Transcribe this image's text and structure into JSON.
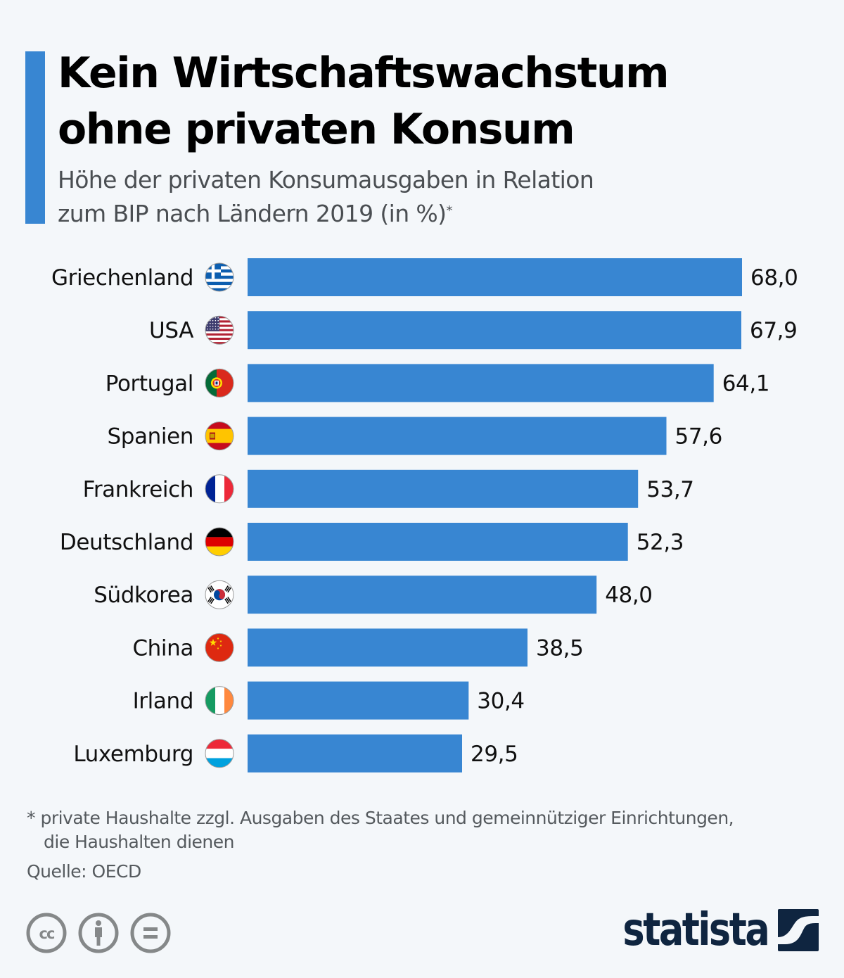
{
  "header": {
    "title_line1": "Kein Wirtschaftswachstum",
    "title_line2": "ohne privaten Konsum",
    "subtitle_line1": "Höhe der privaten Konsumausgaben in Relation",
    "subtitle_line2": "zum BIP nach Ländern 2019 (in %)",
    "subtitle_marker": "*"
  },
  "chart_data": {
    "type": "bar",
    "orientation": "horizontal",
    "title": "Kein Wirtschaftswachstum ohne privaten Konsum",
    "subtitle": "Höhe der privaten Konsumausgaben in Relation zum BIP nach Ländern 2019 (in %)*",
    "xlabel": "",
    "ylabel": "",
    "xlim": [
      0,
      68
    ],
    "grid": false,
    "legend": "none",
    "bar_color": "#3886d2",
    "categories": [
      "Griechenland",
      "USA",
      "Portugal",
      "Spanien",
      "Frankreich",
      "Deutschland",
      "Südkorea",
      "China",
      "Irland",
      "Luxemburg"
    ],
    "flags": [
      "greece-flag",
      "usa-flag",
      "portugal-flag",
      "spain-flag",
      "france-flag",
      "germany-flag",
      "south-korea-flag",
      "china-flag",
      "ireland-flag",
      "luxembourg-flag"
    ],
    "values": [
      68.0,
      67.9,
      64.1,
      57.6,
      53.7,
      52.3,
      48.0,
      38.5,
      30.4,
      29.5
    ],
    "value_labels": [
      "68,0",
      "67,9",
      "64,1",
      "57,6",
      "53,7",
      "52,3",
      "48,0",
      "38,5",
      "30,4",
      "29,5"
    ]
  },
  "footer": {
    "footnote_line1": "* private Haushalte zzgl. Ausgaben des Staates und gemeinnütziger Einrichtungen,",
    "footnote_line2": "die Haushalten dienen",
    "source": "Quelle: OECD",
    "license_icons": [
      "creative-commons-icon",
      "attribution-icon",
      "no-derivatives-icon"
    ],
    "brand": "statista"
  },
  "colors": {
    "accent": "#3886d2",
    "background": "#f4f7fa",
    "brand": "#0f2540"
  }
}
